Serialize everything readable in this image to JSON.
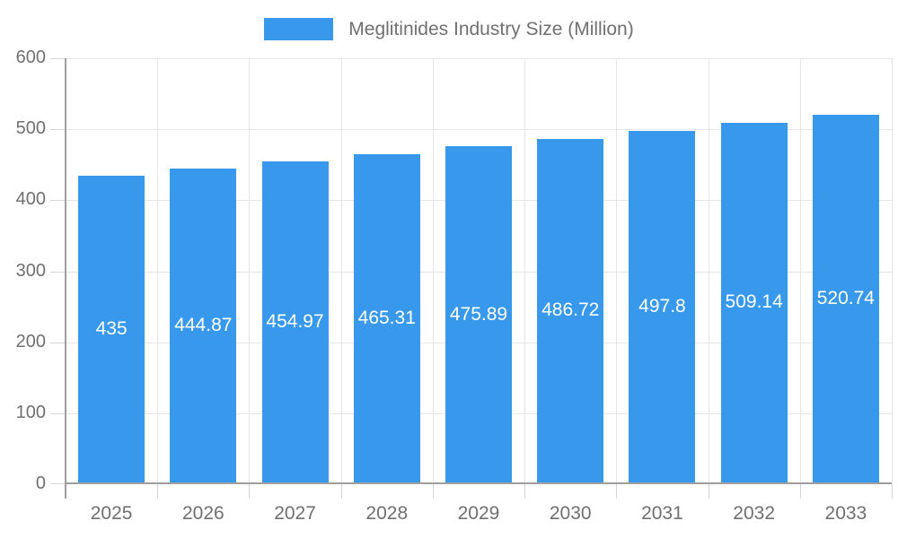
{
  "legend": {
    "label": "Meglitinides Industry Size (Million)",
    "position": "top"
  },
  "colors": {
    "bar": "#3899EC",
    "grid": "#e6e6e6",
    "axis": "#9e9e9e",
    "tick": "#d4d4d4",
    "label_text": "#707070",
    "value_text": "#ffffff",
    "background": "#ffffff"
  },
  "chart_data": {
    "type": "bar",
    "title": "Meglitinides Industry Size (Million)",
    "categories": [
      "2025",
      "2026",
      "2027",
      "2028",
      "2029",
      "2030",
      "2031",
      "2032",
      "2033"
    ],
    "series": [
      {
        "name": "Meglitinides Industry Size (Million)",
        "values": [
          435,
          444.87,
          454.97,
          465.31,
          475.89,
          486.72,
          497.8,
          509.14,
          520.74
        ]
      }
    ],
    "value_labels": [
      "435",
      "444.87",
      "454.97",
      "465.31",
      "475.89",
      "486.72",
      "497.8",
      "509.14",
      "520.74"
    ],
    "xlabel": "",
    "ylabel": "",
    "ylim": [
      0,
      600
    ],
    "yticks": [
      0,
      100,
      200,
      300,
      400,
      500,
      600
    ],
    "grid": true,
    "legend_position": "top",
    "value_labels_inside_bars": true
  }
}
